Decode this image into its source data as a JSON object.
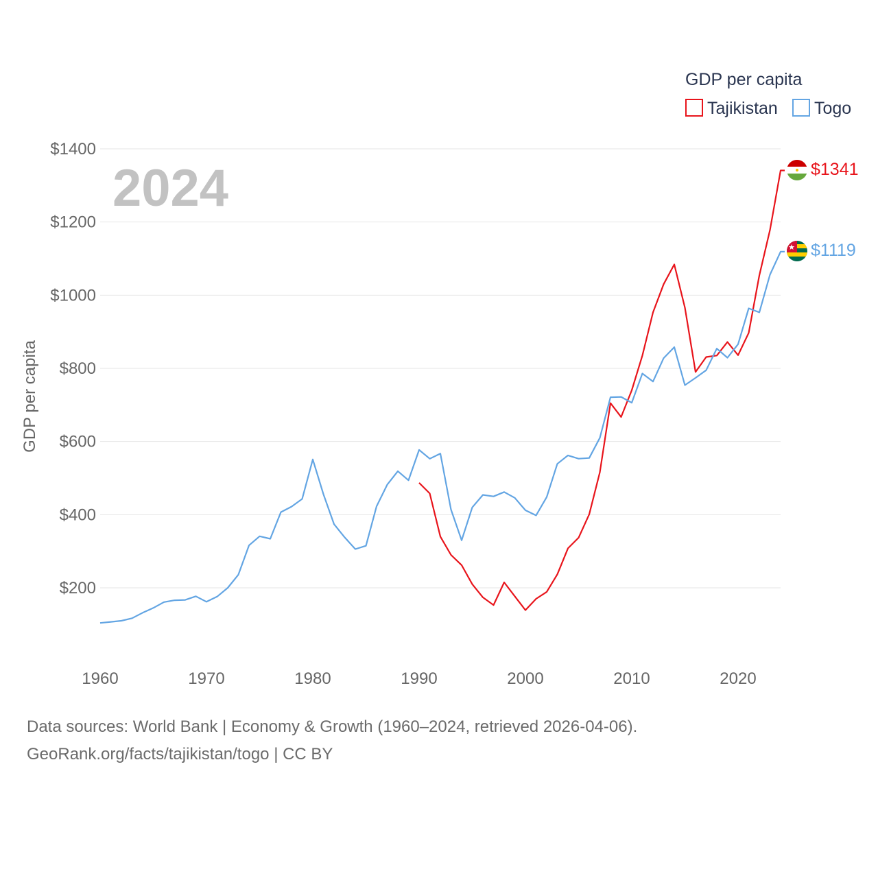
{
  "legend": {
    "title": "GDP per capita",
    "items": [
      {
        "name": "Tajikistan",
        "color": "#e8141b"
      },
      {
        "name": "Togo",
        "color": "#63a5e3"
      }
    ]
  },
  "year_label": "2024",
  "end_labels": {
    "tajikistan": "$1341",
    "togo": "$1119"
  },
  "footer": {
    "line1": "Data sources: World Bank | Economy & Growth (1960–2024, retrieved 2026-04-06).",
    "line2": "GeoRank.org/facts/tajikistan/togo | CC BY"
  },
  "chart_data": {
    "type": "line",
    "title": "GDP per capita",
    "xlabel": "",
    "ylabel": "GDP per capita",
    "xlim": [
      1960,
      2024
    ],
    "ylim": [
      0,
      1400
    ],
    "y_ticks": [
      200,
      400,
      600,
      800,
      1000,
      1200,
      1400
    ],
    "y_tick_labels": [
      "$200",
      "$400",
      "$600",
      "$800",
      "$1000",
      "$1200",
      "$1400"
    ],
    "x_ticks": [
      1960,
      1970,
      1980,
      1990,
      2000,
      2010,
      2020
    ],
    "x_tick_labels": [
      "1960",
      "1970",
      "1980",
      "1990",
      "2000",
      "2010",
      "2020"
    ],
    "grid": true,
    "legend_position": "top-right",
    "series": [
      {
        "name": "Tajikistan",
        "color": "#e8141b",
        "x": [
          1990,
          1991,
          1992,
          1993,
          1994,
          1995,
          1996,
          1997,
          1998,
          1999,
          2000,
          2001,
          2002,
          2003,
          2004,
          2005,
          2006,
          2007,
          2008,
          2009,
          2010,
          2011,
          2012,
          2013,
          2014,
          2015,
          2016,
          2017,
          2018,
          2019,
          2020,
          2021,
          2022,
          2023,
          2024
        ],
        "values": [
          487,
          458,
          340,
          290,
          262,
          210,
          174,
          153,
          215,
          177,
          139,
          170,
          189,
          237,
          308,
          337,
          401,
          516,
          705,
          667,
          740,
          835,
          953,
          1030,
          1084,
          966,
          790,
          831,
          835,
          872,
          836,
          897,
          1054,
          1178,
          1341
        ]
      },
      {
        "name": "Togo",
        "color": "#63a5e3",
        "x": [
          1960,
          1961,
          1962,
          1963,
          1964,
          1965,
          1966,
          1967,
          1968,
          1969,
          1970,
          1971,
          1972,
          1973,
          1974,
          1975,
          1976,
          1977,
          1978,
          1979,
          1980,
          1981,
          1982,
          1983,
          1984,
          1985,
          1986,
          1987,
          1988,
          1989,
          1990,
          1991,
          1992,
          1993,
          1994,
          1995,
          1996,
          1997,
          1998,
          1999,
          2000,
          2001,
          2002,
          2003,
          2004,
          2005,
          2006,
          2007,
          2008,
          2009,
          2010,
          2011,
          2012,
          2013,
          2014,
          2015,
          2016,
          2017,
          2018,
          2019,
          2020,
          2021,
          2022,
          2023,
          2024
        ],
        "values": [
          104,
          107,
          110,
          117,
          132,
          145,
          161,
          166,
          167,
          177,
          162,
          176,
          200,
          236,
          316,
          341,
          334,
          407,
          422,
          443,
          551,
          456,
          374,
          338,
          306,
          315,
          423,
          482,
          519,
          494,
          577,
          553,
          567,
          414,
          330,
          420,
          454,
          450,
          462,
          446,
          412,
          398,
          448,
          539,
          562,
          553,
          555,
          610,
          721,
          722,
          706,
          786,
          764,
          828,
          858,
          754,
          774,
          795,
          854,
          829,
          866,
          964,
          953,
          1056,
          1119
        ]
      }
    ]
  }
}
